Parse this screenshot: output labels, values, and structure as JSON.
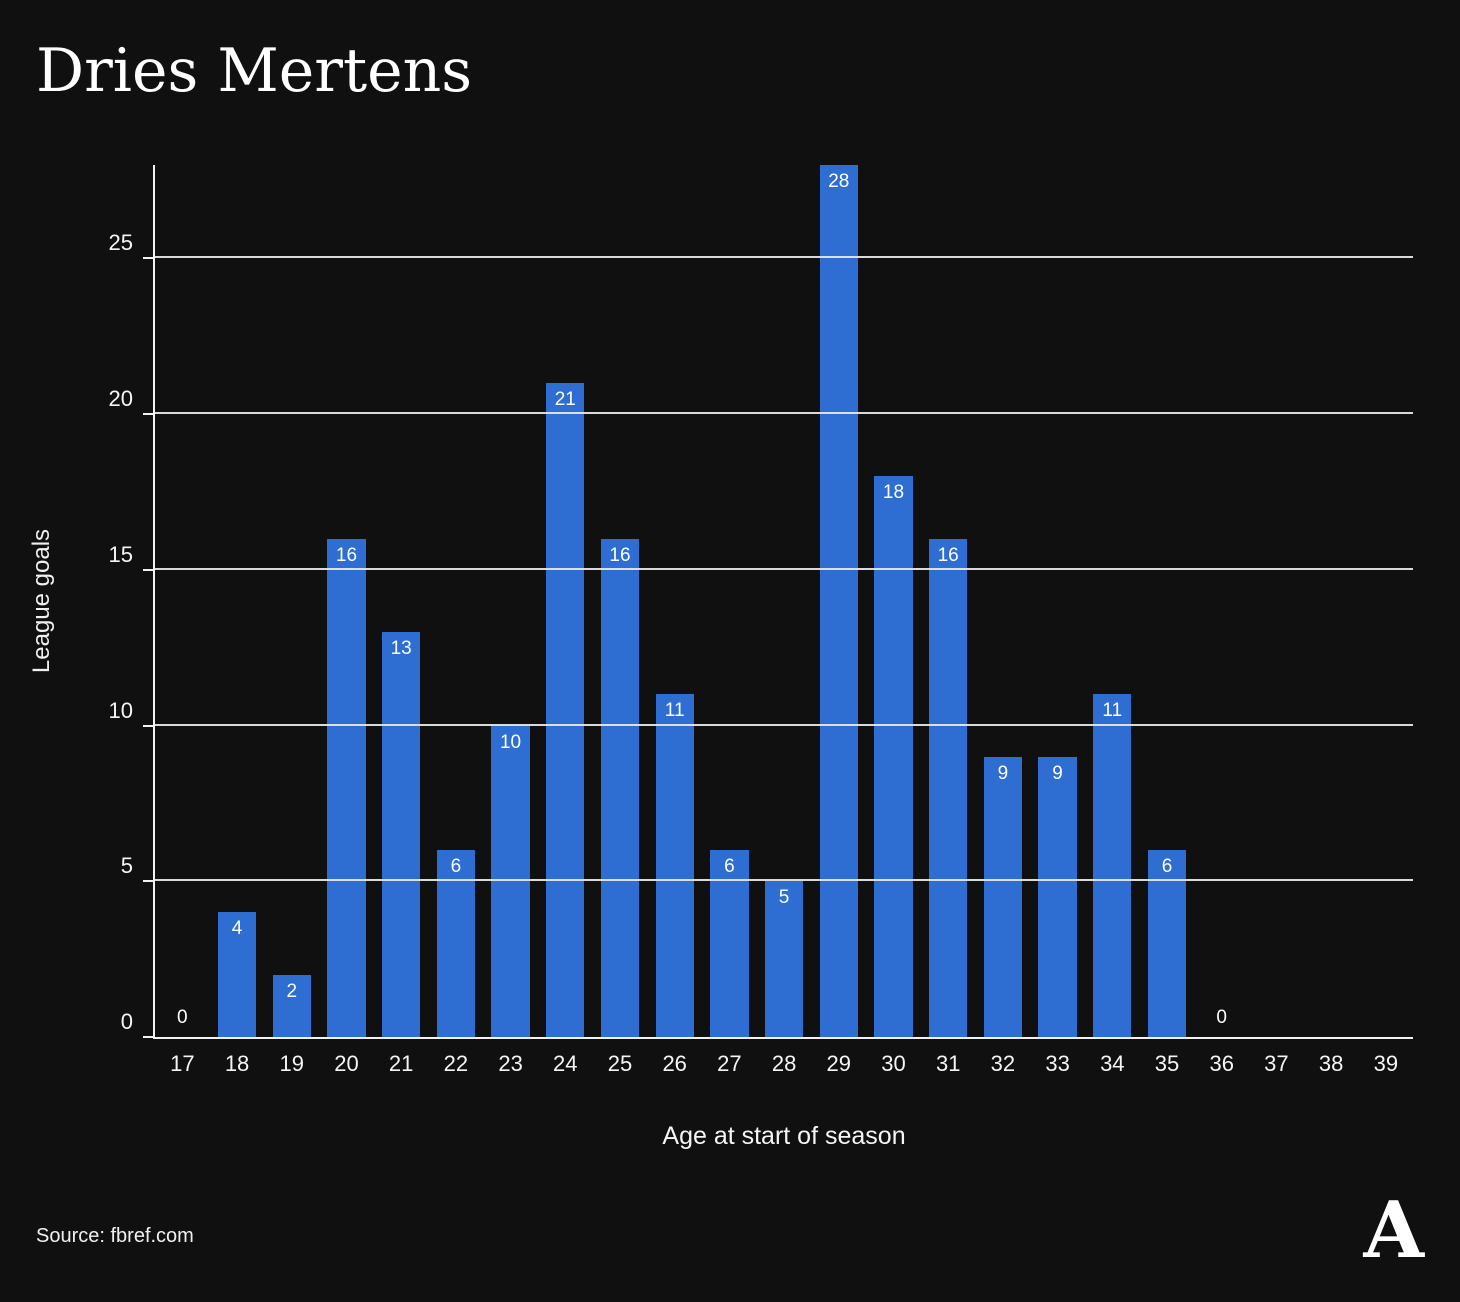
{
  "title": "Dries Mertens",
  "source": "Source: fbref.com",
  "logo": "A",
  "chart_data": {
    "type": "bar",
    "title": "Dries Mertens",
    "xlabel": "Age at start of season",
    "ylabel": "League goals",
    "categories": [
      17,
      18,
      19,
      20,
      21,
      22,
      23,
      24,
      25,
      26,
      27,
      28,
      29,
      30,
      31,
      32,
      33,
      34,
      35,
      36,
      37,
      38,
      39
    ],
    "values": [
      0,
      4,
      2,
      16,
      13,
      6,
      10,
      21,
      16,
      11,
      6,
      5,
      28,
      18,
      16,
      9,
      9,
      11,
      6,
      0,
      null,
      null,
      null
    ],
    "ylim": [
      0,
      28
    ],
    "yticks": [
      0,
      5,
      10,
      15,
      20,
      25
    ],
    "grid": true,
    "legend": "none",
    "bar_color": "#2e6dd2",
    "gridline_color": "#e6e6e4",
    "background_color": "#101010",
    "text_color": "#f5f5f5"
  }
}
